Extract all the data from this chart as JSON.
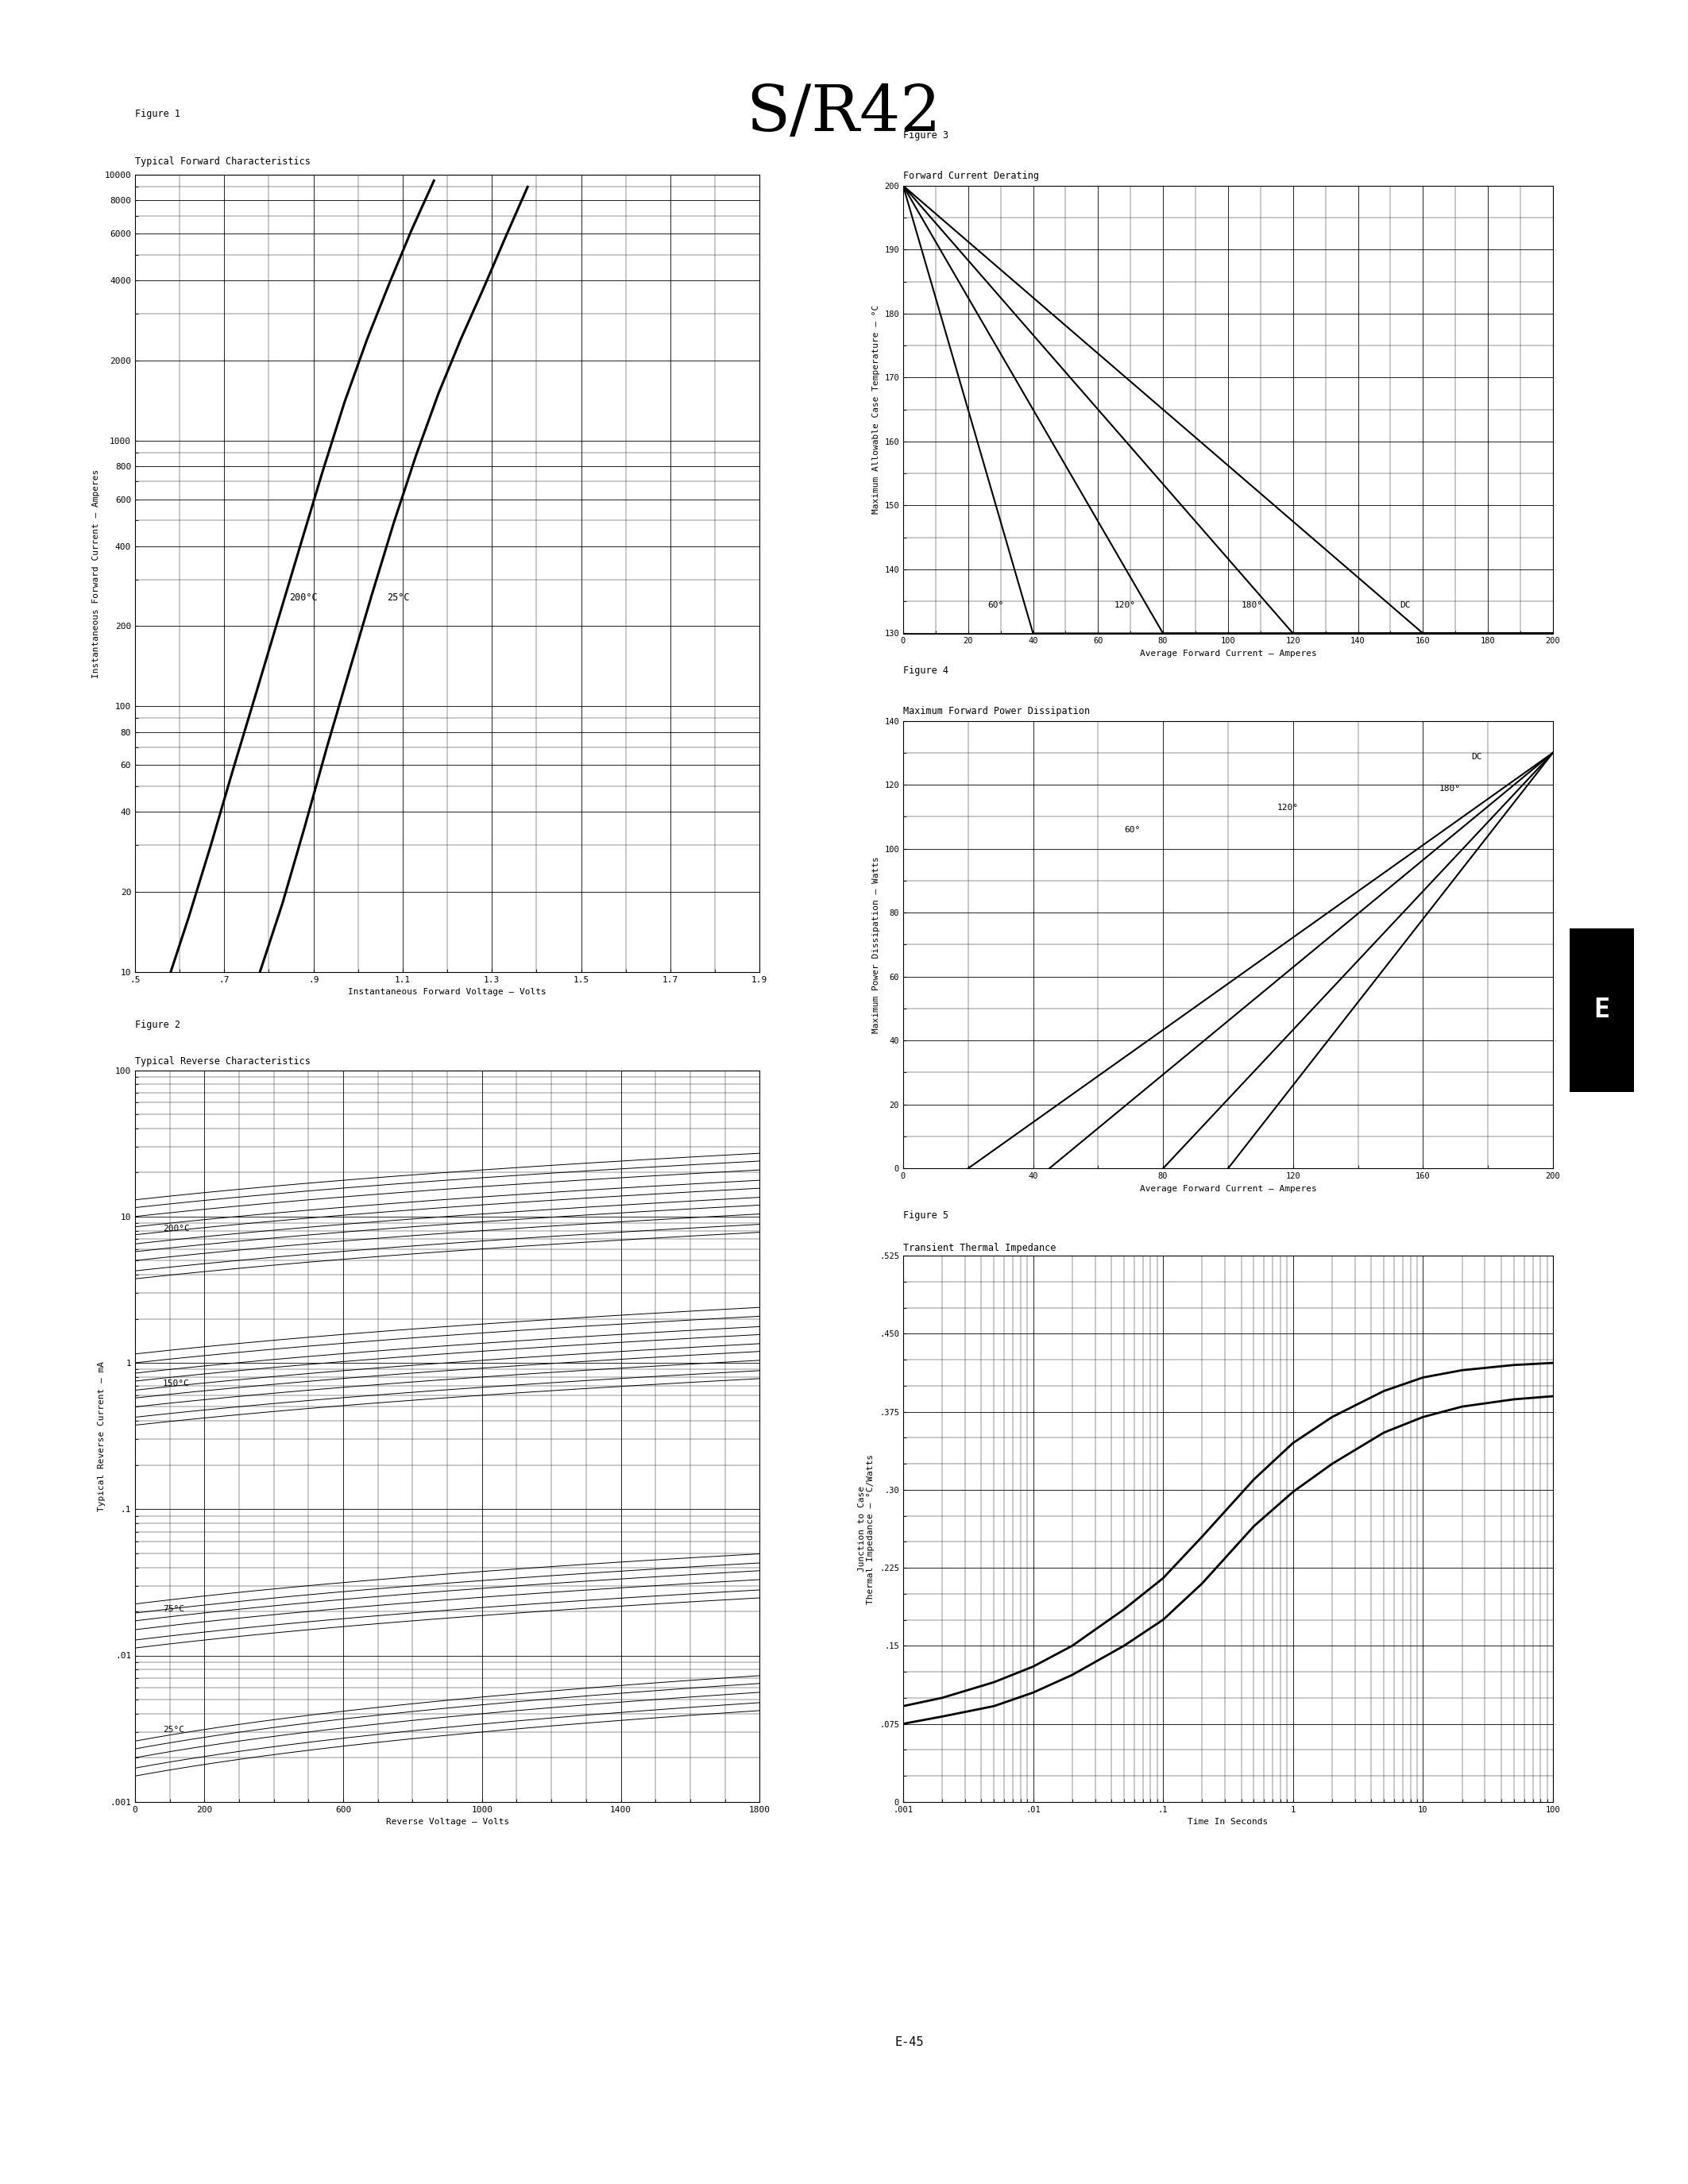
{
  "title": "S/R42",
  "page_label": "E-45",
  "background_color": "#ffffff",
  "fig1_title_line1": "Figure 1",
  "fig1_title_line2": "Typical Forward Characteristics",
  "fig1_xlabel": "Instantaneous Forward Voltage — Volts",
  "fig1_ylabel": "Instantaneous Forward Current — Amperes",
  "fig1_xlim": [
    0.5,
    1.9
  ],
  "fig1_xtick_vals": [
    0.5,
    0.7,
    0.9,
    1.1,
    1.3,
    1.5,
    1.7,
    1.9
  ],
  "fig1_xtick_labels": [
    ".5",
    ".7",
    ".9",
    "1.1",
    "1.3",
    "1.5",
    "1.7",
    "1.9"
  ],
  "fig1_ytick_vals": [
    10,
    20,
    40,
    60,
    80,
    100,
    200,
    400,
    600,
    800,
    1000,
    2000,
    4000,
    6000,
    8000,
    10000
  ],
  "fig1_ytick_labels": [
    "10",
    "20",
    "40",
    "60",
    "80",
    "100",
    "200",
    "400",
    "600",
    "800",
    "1000",
    "2000",
    "4000",
    "6000",
    "8000",
    "10000"
  ],
  "fig1_ylim": [
    10,
    10000
  ],
  "fig2_title_line1": "Figure 2",
  "fig2_title_line2": "Typical Reverse Characteristics",
  "fig2_xlabel": "Reverse Voltage — Volts",
  "fig2_ylabel": "Typical Reverse Current — mA",
  "fig2_xlim": [
    0,
    1800
  ],
  "fig2_xtick_vals": [
    0,
    200,
    600,
    1000,
    1400,
    1800
  ],
  "fig2_xtick_labels": [
    "0",
    "200",
    "600",
    "1000",
    "1400",
    "1800"
  ],
  "fig2_ylim": [
    0.001,
    100
  ],
  "fig2_ytick_vals": [
    0.001,
    0.01,
    0.1,
    1,
    10,
    100
  ],
  "fig2_ytick_labels": [
    ".001",
    ".01",
    ".1",
    "1",
    "10",
    "100"
  ],
  "fig3_title_line1": "Figure 3",
  "fig3_title_line2": "Forward Current Derating",
  "fig3_xlabel": "Average Forward Current — Amperes",
  "fig3_ylabel": "Maximum Allowable Case Temperature — °C",
  "fig3_xlim": [
    0,
    200
  ],
  "fig3_xtick_vals": [
    0,
    20,
    40,
    60,
    80,
    100,
    120,
    140,
    160,
    180,
    200
  ],
  "fig3_ylim": [
    130,
    200
  ],
  "fig3_ytick_vals": [
    130,
    140,
    150,
    160,
    170,
    180,
    190,
    200
  ],
  "fig4_title_line1": "Figure 4",
  "fig4_title_line2": "Maximum Forward Power Dissipation",
  "fig4_xlabel": "Average Forward Current — Amperes",
  "fig4_ylabel": "Maximum Power Dissipation — Watts",
  "fig4_xlim": [
    0,
    200
  ],
  "fig4_xtick_vals": [
    0,
    40,
    80,
    120,
    160,
    200
  ],
  "fig4_ylim": [
    0,
    140
  ],
  "fig4_ytick_vals": [
    0,
    20,
    40,
    60,
    80,
    100,
    120,
    140
  ],
  "fig5_title_line1": "Figure 5",
  "fig5_title_line2": "Transient Thermal Impedance",
  "fig5_xlabel": "Time In Seconds",
  "fig5_ylabel": "Junction to Case\nThermal Impedance — °C/Watts",
  "fig5_xtick_vals": [
    0.001,
    0.01,
    0.1,
    1,
    10,
    100
  ],
  "fig5_xtick_labels": [
    ".001",
    ".01",
    ".1",
    "1",
    "10",
    "100"
  ],
  "fig5_ylim": [
    0,
    0.525
  ],
  "fig5_ytick_vals": [
    0,
    0.075,
    0.15,
    0.225,
    0.3,
    0.375,
    0.45,
    0.525
  ],
  "fig5_ytick_labels": [
    "0",
    ".075",
    ".15",
    ".225",
    ".30",
    ".375",
    ".450",
    ".525"
  ]
}
